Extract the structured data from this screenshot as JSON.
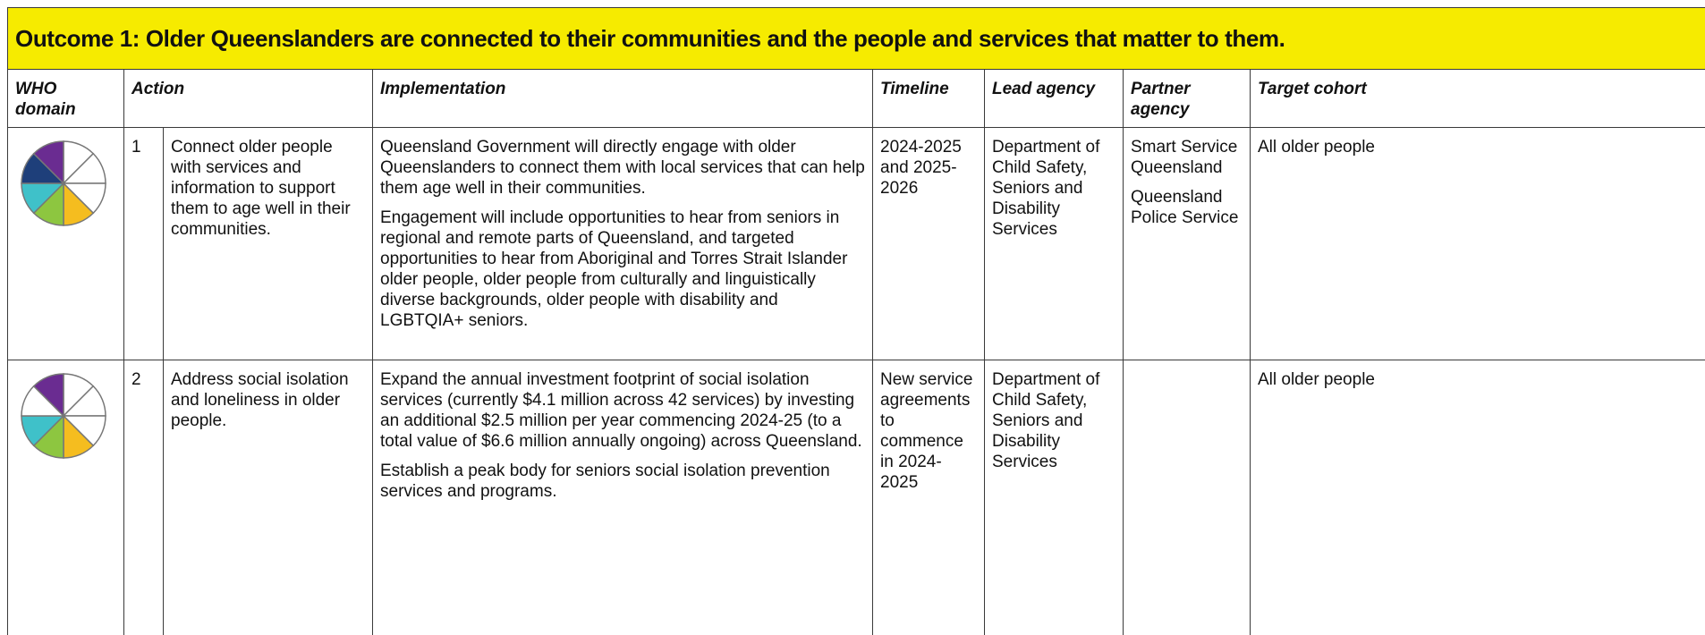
{
  "title": "Outcome 1: Older Queenslanders are connected to their communities and the people and services that matter to them.",
  "table": {
    "headers": [
      "WHO domain",
      "Action",
      "Implementation",
      "Timeline",
      "Lead agency",
      "Partner agency",
      "Target cohort"
    ],
    "rows": [
      {
        "number": "1",
        "action": "Connect older people with services and information to support them to age well in their communities.",
        "implementation": [
          "Queensland Government will directly engage with older Queenslanders to connect them with local services that can help them age well in their communities.",
          "Engagement will include opportunities to hear from seniors in regional and remote parts of Queensland, and targeted opportunities to hear from Aboriginal and Torres Strait Islander older people, older people from culturally and linguistically diverse backgrounds, older people with disability and LGBTQIA+ seniors."
        ],
        "timeline": "2024-2025 and 2025-2026",
        "lead_agency": "Department of Child Safety, Seniors and Disability Services",
        "partner_agency": [
          "Smart Service Queensland",
          "Queensland Police Service"
        ],
        "target_cohort": "All older people"
      },
      {
        "number": "2",
        "action": "Address social isolation and loneliness in older people.",
        "implementation": [
          "Expand the annual investment footprint of social isolation services (currently $4.1 million across 42 services) by investing an additional $2.5 million per year commencing 2024-25 (to a total value of $6.6 million annually ongoing) across Queensland.",
          "Establish a peak body for seniors social isolation prevention services and programs."
        ],
        "timeline": "New service agreements to commence in 2024-2025",
        "lead_agency": "Department of Child Safety, Seniors and Disability Services",
        "partner_agency": [],
        "target_cohort": "All older people"
      }
    ]
  }
}
